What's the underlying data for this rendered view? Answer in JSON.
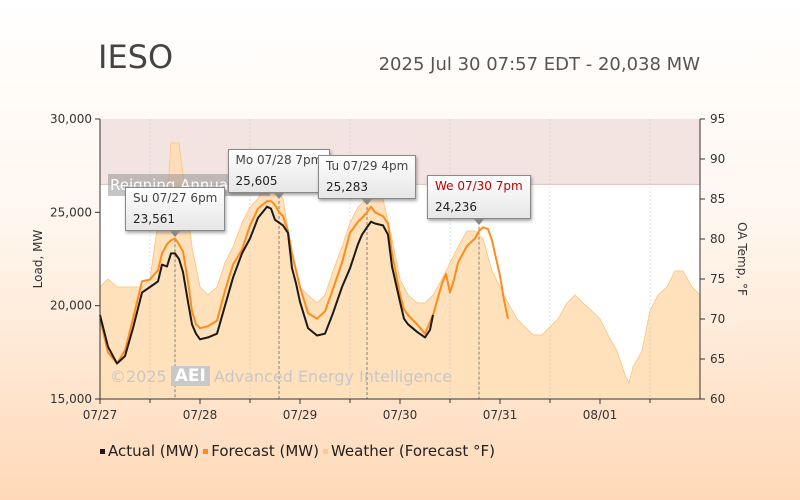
{
  "header": {
    "title": "IESO",
    "status": "2025 Jul 30 07:57 EDT - 20,038 MW"
  },
  "colors": {
    "actual": "#1a1a1a",
    "forecast": "#ff8c1a",
    "weather_fill": "#ffdcb0",
    "weather_line": "#fcc98e",
    "record_band": "#f3e3e1",
    "plot_bg": "#ffffff"
  },
  "watermark": {
    "year": "©2025",
    "logo": "AEI",
    "company": "Advanced Energy Intelligence"
  },
  "record_band": {
    "label": "Reigning Annual Peak",
    "from_mw": 26500,
    "to_mw": 30000
  },
  "chart_data": {
    "type": "line",
    "title": "",
    "xlabel": "",
    "ylabel": "Load, MW",
    "y2label": "OA Temp, °F",
    "x_ticks": [
      "07/27",
      "07/28",
      "07/29",
      "07/30",
      "07/31",
      "08/01"
    ],
    "x_range_days": [
      0,
      6
    ],
    "ylim": [
      15000,
      30000
    ],
    "y_ticks": [
      "15,000",
      "20,000",
      "25,000",
      "30,000"
    ],
    "y2lim": [
      60,
      95
    ],
    "y2_ticks": [
      "60",
      "65",
      "70",
      "75",
      "80",
      "85",
      "90",
      "95"
    ],
    "grid": false,
    "legend": "bottom",
    "series": [
      {
        "name": "Actual (MW)",
        "axis": "left",
        "points": [
          [
            0.0,
            19500
          ],
          [
            0.08,
            17800
          ],
          [
            0.17,
            16900
          ],
          [
            0.25,
            17300
          ],
          [
            0.33,
            18800
          ],
          [
            0.42,
            20700
          ],
          [
            0.5,
            21000
          ],
          [
            0.58,
            21300
          ],
          [
            0.62,
            22200
          ],
          [
            0.67,
            22100
          ],
          [
            0.71,
            22800
          ],
          [
            0.75,
            22800
          ],
          [
            0.79,
            22500
          ],
          [
            0.83,
            21800
          ],
          [
            0.88,
            20200
          ],
          [
            0.92,
            19000
          ],
          [
            0.96,
            18500
          ],
          [
            1.0,
            18200
          ],
          [
            1.08,
            18300
          ],
          [
            1.17,
            18500
          ],
          [
            1.25,
            20000
          ],
          [
            1.33,
            21500
          ],
          [
            1.42,
            22800
          ],
          [
            1.5,
            23600
          ],
          [
            1.58,
            24700
          ],
          [
            1.67,
            25300
          ],
          [
            1.71,
            25200
          ],
          [
            1.75,
            24600
          ],
          [
            1.83,
            24300
          ],
          [
            1.88,
            23900
          ],
          [
            1.92,
            22000
          ],
          [
            1.96,
            21200
          ],
          [
            2.0,
            20200
          ],
          [
            2.08,
            18800
          ],
          [
            2.17,
            18400
          ],
          [
            2.25,
            18500
          ],
          [
            2.33,
            19600
          ],
          [
            2.42,
            21000
          ],
          [
            2.5,
            22000
          ],
          [
            2.58,
            23300
          ],
          [
            2.62,
            23800
          ],
          [
            2.67,
            24200
          ],
          [
            2.71,
            24500
          ],
          [
            2.75,
            24400
          ],
          [
            2.83,
            24300
          ],
          [
            2.88,
            23800
          ],
          [
            2.92,
            22100
          ],
          [
            3.0,
            20200
          ],
          [
            3.04,
            19300
          ],
          [
            3.08,
            19000
          ],
          [
            3.17,
            18600
          ],
          [
            3.25,
            18300
          ],
          [
            3.3,
            18700
          ],
          [
            3.33,
            19500
          ]
        ]
      },
      {
        "name": "Forecast (MW)",
        "axis": "left",
        "points": [
          [
            0.0,
            19300
          ],
          [
            0.08,
            17500
          ],
          [
            0.17,
            16900
          ],
          [
            0.25,
            17600
          ],
          [
            0.33,
            19300
          ],
          [
            0.42,
            21300
          ],
          [
            0.5,
            21400
          ],
          [
            0.58,
            21900
          ],
          [
            0.62,
            22800
          ],
          [
            0.67,
            23300
          ],
          [
            0.71,
            23500
          ],
          [
            0.75,
            23600
          ],
          [
            0.79,
            23300
          ],
          [
            0.83,
            22900
          ],
          [
            0.88,
            21300
          ],
          [
            0.92,
            19700
          ],
          [
            0.96,
            19000
          ],
          [
            1.0,
            18800
          ],
          [
            1.08,
            18900
          ],
          [
            1.17,
            19200
          ],
          [
            1.25,
            20800
          ],
          [
            1.33,
            22200
          ],
          [
            1.42,
            23000
          ],
          [
            1.5,
            24300
          ],
          [
            1.58,
            25200
          ],
          [
            1.67,
            25600
          ],
          [
            1.71,
            25600
          ],
          [
            1.75,
            25400
          ],
          [
            1.79,
            25000
          ],
          [
            1.83,
            24800
          ],
          [
            1.88,
            24000
          ],
          [
            1.92,
            22800
          ],
          [
            1.96,
            21900
          ],
          [
            2.0,
            21000
          ],
          [
            2.08,
            19600
          ],
          [
            2.17,
            19300
          ],
          [
            2.25,
            19700
          ],
          [
            2.33,
            20900
          ],
          [
            2.42,
            22300
          ],
          [
            2.5,
            23900
          ],
          [
            2.58,
            24500
          ],
          [
            2.62,
            24700
          ],
          [
            2.67,
            25000
          ],
          [
            2.71,
            25300
          ],
          [
            2.75,
            25000
          ],
          [
            2.83,
            24800
          ],
          [
            2.88,
            24400
          ],
          [
            2.92,
            22800
          ],
          [
            3.0,
            20600
          ],
          [
            3.04,
            19800
          ],
          [
            3.08,
            19500
          ],
          [
            3.17,
            19000
          ],
          [
            3.25,
            18500
          ],
          [
            3.33,
            19500
          ],
          [
            3.42,
            21200
          ],
          [
            3.46,
            21700
          ],
          [
            3.5,
            20700
          ],
          [
            3.54,
            21400
          ],
          [
            3.58,
            22300
          ],
          [
            3.67,
            23200
          ],
          [
            3.75,
            23600
          ],
          [
            3.79,
            24000
          ],
          [
            3.83,
            24200
          ],
          [
            3.88,
            24100
          ],
          [
            3.92,
            23500
          ],
          [
            4.0,
            21600
          ],
          [
            4.04,
            20300
          ],
          [
            4.08,
            19300
          ]
        ]
      },
      {
        "name": "Weather (Forecast °F)",
        "axis": "right",
        "points": [
          [
            0.0,
            74
          ],
          [
            0.08,
            75
          ],
          [
            0.17,
            74
          ],
          [
            0.33,
            74
          ],
          [
            0.42,
            74
          ],
          [
            0.5,
            75
          ],
          [
            0.58,
            82
          ],
          [
            0.62,
            83
          ],
          [
            0.67,
            84
          ],
          [
            0.71,
            92
          ],
          [
            0.79,
            92
          ],
          [
            0.83,
            88
          ],
          [
            0.92,
            79
          ],
          [
            1.0,
            74
          ],
          [
            1.08,
            73
          ],
          [
            1.17,
            74
          ],
          [
            1.25,
            77
          ],
          [
            1.33,
            79
          ],
          [
            1.42,
            82
          ],
          [
            1.5,
            84
          ],
          [
            1.58,
            85
          ],
          [
            1.67,
            87
          ],
          [
            1.75,
            87
          ],
          [
            1.83,
            85
          ],
          [
            1.92,
            78
          ],
          [
            2.0,
            74
          ],
          [
            2.08,
            73
          ],
          [
            2.17,
            72
          ],
          [
            2.25,
            73
          ],
          [
            2.33,
            76
          ],
          [
            2.42,
            79
          ],
          [
            2.5,
            82
          ],
          [
            2.58,
            84
          ],
          [
            2.67,
            85
          ],
          [
            2.75,
            86
          ],
          [
            2.83,
            85
          ],
          [
            2.92,
            80
          ],
          [
            3.0,
            75
          ],
          [
            3.08,
            73
          ],
          [
            3.17,
            72
          ],
          [
            3.25,
            72
          ],
          [
            3.33,
            73
          ],
          [
            3.42,
            75
          ],
          [
            3.5,
            77
          ],
          [
            3.58,
            79
          ],
          [
            3.67,
            81
          ],
          [
            3.75,
            81
          ],
          [
            3.83,
            80
          ],
          [
            3.92,
            76
          ],
          [
            4.0,
            74
          ],
          [
            4.08,
            72
          ],
          [
            4.17,
            70
          ],
          [
            4.25,
            69
          ],
          [
            4.33,
            68
          ],
          [
            4.42,
            68
          ],
          [
            4.5,
            69
          ],
          [
            4.58,
            70
          ],
          [
            4.67,
            72
          ],
          [
            4.75,
            73
          ],
          [
            4.83,
            72
          ],
          [
            4.92,
            71
          ],
          [
            5.0,
            70
          ],
          [
            5.08,
            68
          ],
          [
            5.17,
            66
          ],
          [
            5.25,
            63
          ],
          [
            5.29,
            62
          ],
          [
            5.33,
            64
          ],
          [
            5.42,
            66
          ],
          [
            5.5,
            71
          ],
          [
            5.58,
            73
          ],
          [
            5.67,
            74
          ],
          [
            5.75,
            76
          ],
          [
            5.83,
            76
          ],
          [
            5.92,
            74
          ],
          [
            6.0,
            73
          ]
        ]
      }
    ],
    "annotations": [
      {
        "label": "Su 07/27 6pm",
        "value": "23,561",
        "x": 0.75,
        "y": 23561,
        "highlight": false
      },
      {
        "label": "Mo 07/28 7pm",
        "value": "25,605",
        "x": 1.79,
        "y": 25605,
        "highlight": false
      },
      {
        "label": "Tu 07/29 4pm",
        "value": "25,283",
        "x": 2.67,
        "y": 25283,
        "highlight": false
      },
      {
        "label": "We 07/30 7pm",
        "value": "24,236",
        "x": 3.79,
        "y": 24236,
        "highlight": true
      }
    ]
  },
  "legend": {
    "actual": "Actual (MW)",
    "forecast": "Forecast (MW)",
    "weather": "Weather (Forecast °F)"
  }
}
